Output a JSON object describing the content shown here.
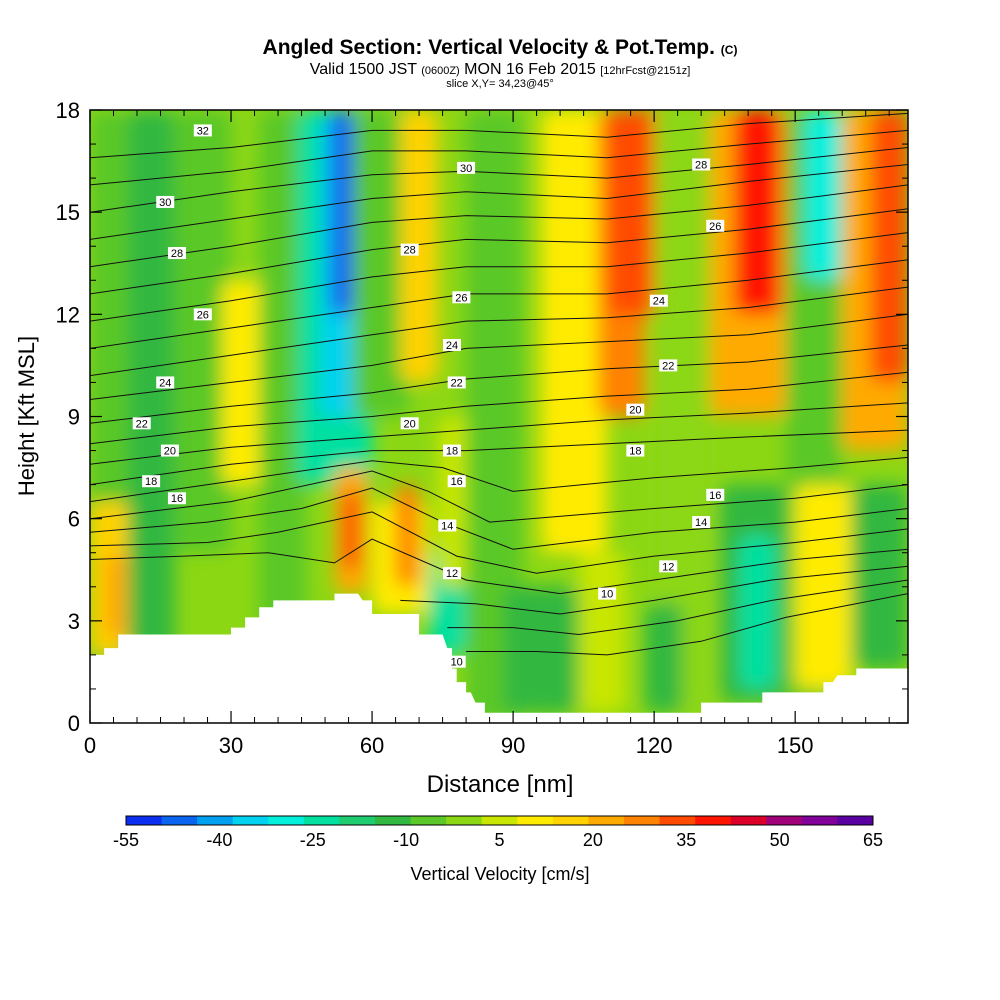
{
  "header": {
    "title": "Angled Section: Vertical Velocity & Pot.Temp.",
    "title_unit": "(C)",
    "valid_prefix": "Valid 1500 JST",
    "valid_utc": "(0600Z)",
    "valid_date": "MON 16 Feb 2015",
    "forecast": "[12hrFcst@2151z]",
    "slice": "slice X,Y= 34,23@45°"
  },
  "chart_data": {
    "type": "heatmap",
    "xlabel": "Distance [nm]",
    "ylabel": "Height [Kft MSL]",
    "xlim": [
      0,
      174
    ],
    "ylim": [
      0,
      18
    ],
    "xticks": [
      0,
      30,
      60,
      90,
      120,
      150
    ],
    "yticks": [
      0,
      3,
      6,
      9,
      12,
      15,
      18
    ],
    "colorbar": {
      "label": "Vertical Velocity [cm/s]",
      "tick_labels": [
        "-55",
        "-40",
        "-25",
        "-10",
        "5",
        "20",
        "35",
        "50",
        "65"
      ],
      "tick_values": [
        -55,
        -40,
        -25,
        -10,
        5,
        20,
        35,
        50,
        65
      ],
      "colors": [
        "#0a2ff0",
        "#0a64f0",
        "#00a0f0",
        "#00d2f0",
        "#00f0dc",
        "#00e0a0",
        "#20cc70",
        "#30b840",
        "#5ac828",
        "#8cd714",
        "#c8e600",
        "#ffeb00",
        "#ffd200",
        "#ffaa00",
        "#ff8200",
        "#ff4b00",
        "#ff1400",
        "#dc0028",
        "#a0007a",
        "#82009a",
        "#5a00a0"
      ]
    },
    "terrain": [
      [
        0,
        2.0
      ],
      [
        3,
        2.0
      ],
      [
        3,
        2.2
      ],
      [
        6,
        2.2
      ],
      [
        6,
        2.6
      ],
      [
        15,
        2.6
      ],
      [
        20,
        2.6
      ],
      [
        25,
        2.6
      ],
      [
        30,
        2.6
      ],
      [
        30,
        2.8
      ],
      [
        33,
        2.8
      ],
      [
        33,
        3.1
      ],
      [
        36,
        3.1
      ],
      [
        36,
        3.4
      ],
      [
        39,
        3.4
      ],
      [
        39,
        3.6
      ],
      [
        45,
        3.6
      ],
      [
        52,
        3.6
      ],
      [
        52,
        3.8
      ],
      [
        57,
        3.8
      ],
      [
        58,
        3.6
      ],
      [
        60,
        3.6
      ],
      [
        60,
        3.2
      ],
      [
        64,
        3.2
      ],
      [
        70,
        3.2
      ],
      [
        70,
        2.6
      ],
      [
        73,
        2.6
      ],
      [
        75,
        2.6
      ],
      [
        76,
        2.2
      ],
      [
        77,
        2.2
      ],
      [
        77,
        1.6
      ],
      [
        78,
        1.6
      ],
      [
        78,
        1.2
      ],
      [
        80,
        1.2
      ],
      [
        80,
        0.9
      ],
      [
        81,
        0.9
      ],
      [
        82,
        0.6
      ],
      [
        84,
        0.6
      ],
      [
        84,
        0.3
      ],
      [
        90,
        0.3
      ],
      [
        97,
        0.3
      ],
      [
        100,
        0.3
      ],
      [
        120,
        0.3
      ],
      [
        130,
        0.3
      ],
      [
        130,
        0.6
      ],
      [
        134,
        0.6
      ],
      [
        138,
        0.6
      ],
      [
        143,
        0.6
      ],
      [
        143,
        0.9
      ],
      [
        150,
        0.9
      ],
      [
        156,
        0.9
      ],
      [
        156,
        1.2
      ],
      [
        158,
        1.2
      ],
      [
        159,
        1.4
      ],
      [
        163,
        1.4
      ],
      [
        163,
        1.6
      ],
      [
        166,
        1.6
      ],
      [
        174,
        1.6
      ]
    ],
    "shading": [
      {
        "x": 0,
        "w": 8,
        "ymin": 0,
        "ymax": 18,
        "v": -5
      },
      {
        "x": 0,
        "w": 12,
        "ymin": 2,
        "ymax": 6.5,
        "v": 18
      },
      {
        "x": 3,
        "w": 5,
        "ymin": 2.5,
        "ymax": 5,
        "v": 22
      },
      {
        "x": 8,
        "w": 10,
        "ymin": 0,
        "ymax": 18,
        "v": -13
      },
      {
        "x": 18,
        "w": 12,
        "ymin": 5,
        "ymax": 18,
        "v": -4
      },
      {
        "x": 28,
        "w": 10,
        "ymin": 7,
        "ymax": 13,
        "v": 9
      },
      {
        "x": 36,
        "w": 10,
        "ymin": 0,
        "ymax": 18,
        "v": -6
      },
      {
        "x": 44,
        "w": 16,
        "ymin": 7,
        "ymax": 18,
        "v": -24
      },
      {
        "x": 49,
        "w": 8,
        "ymin": 9,
        "ymax": 18,
        "v": -37
      },
      {
        "x": 51,
        "w": 5,
        "ymin": 12,
        "ymax": 18,
        "v": -45
      },
      {
        "x": 52,
        "w": 7,
        "ymin": 3.8,
        "ymax": 7.5,
        "v": 22
      },
      {
        "x": 54,
        "w": 3,
        "ymin": 4.5,
        "ymax": 6.8,
        "v": 38
      },
      {
        "x": 60,
        "w": 12,
        "ymin": 3.2,
        "ymax": 6.5,
        "v": 12
      },
      {
        "x": 65,
        "w": 5,
        "ymin": 4,
        "ymax": 7,
        "v": 28
      },
      {
        "x": 56,
        "w": 12,
        "ymin": 9,
        "ymax": 18,
        "v": -8
      },
      {
        "x": 66,
        "w": 8,
        "ymin": 10,
        "ymax": 18,
        "v": 14
      },
      {
        "x": 72,
        "w": 8,
        "ymin": 2,
        "ymax": 5,
        "v": -22
      },
      {
        "x": 74,
        "w": 10,
        "ymin": 4,
        "ymax": 9,
        "v": 6
      },
      {
        "x": 80,
        "w": 12,
        "ymin": 0,
        "ymax": 18,
        "v": -8
      },
      {
        "x": 88,
        "w": 16,
        "ymin": 0.3,
        "ymax": 4,
        "v": -14
      },
      {
        "x": 96,
        "w": 14,
        "ymin": 5,
        "ymax": 18,
        "v": 8
      },
      {
        "x": 104,
        "w": 10,
        "ymin": 0.3,
        "ymax": 5,
        "v": 6
      },
      {
        "x": 108,
        "w": 10,
        "ymin": 9,
        "ymax": 18,
        "v": 26
      },
      {
        "x": 110,
        "w": 12,
        "ymin": 12,
        "ymax": 18,
        "v": 32
      },
      {
        "x": 120,
        "w": 12,
        "ymin": 0.3,
        "ymax": 18,
        "v": -2
      },
      {
        "x": 118,
        "w": 8,
        "ymin": 0.3,
        "ymax": 3.5,
        "v": -14
      },
      {
        "x": 132,
        "w": 16,
        "ymin": 9,
        "ymax": 18,
        "v": 24
      },
      {
        "x": 137,
        "w": 10,
        "ymin": 12,
        "ymax": 18,
        "v": 38
      },
      {
        "x": 134,
        "w": 14,
        "ymin": 0.6,
        "ymax": 7,
        "v": -14
      },
      {
        "x": 138,
        "w": 8,
        "ymin": 1,
        "ymax": 5.5,
        "v": -24
      },
      {
        "x": 148,
        "w": 12,
        "ymin": 0,
        "ymax": 18,
        "v": -4
      },
      {
        "x": 152,
        "w": 8,
        "ymin": 13,
        "ymax": 18,
        "v": -32
      },
      {
        "x": 150,
        "w": 12,
        "ymin": 1,
        "ymax": 7,
        "v": 9
      },
      {
        "x": 160,
        "w": 14,
        "ymin": 8,
        "ymax": 18,
        "v": 20
      },
      {
        "x": 166,
        "w": 8,
        "ymin": 10,
        "ymax": 18,
        "v": 34
      },
      {
        "x": 162,
        "w": 12,
        "ymin": 1.6,
        "ymax": 7,
        "v": -12
      }
    ],
    "theta_lines": [
      [
        [
          0,
          16.6
        ],
        [
          30,
          16.9
        ],
        [
          60,
          17.4
        ],
        [
          80,
          17.4
        ],
        [
          110,
          17.2
        ],
        [
          140,
          17.6
        ],
        [
          174,
          17.9
        ]
      ],
      [
        [
          0,
          15.8
        ],
        [
          30,
          16.2
        ],
        [
          60,
          16.8
        ],
        [
          80,
          16.8
        ],
        [
          110,
          16.6
        ],
        [
          140,
          17.0
        ],
        [
          174,
          17.4
        ]
      ],
      [
        [
          0,
          15.0
        ],
        [
          30,
          15.6
        ],
        [
          60,
          16.1
        ],
        [
          80,
          16.2
        ],
        [
          110,
          16.0
        ],
        [
          140,
          16.4
        ],
        [
          174,
          16.9
        ]
      ],
      [
        [
          0,
          14.2
        ],
        [
          30,
          14.8
        ],
        [
          60,
          15.4
        ],
        [
          80,
          15.6
        ],
        [
          110,
          15.4
        ],
        [
          140,
          15.9
        ],
        [
          174,
          16.4
        ]
      ],
      [
        [
          0,
          13.4
        ],
        [
          30,
          14.0
        ],
        [
          60,
          14.7
        ],
        [
          80,
          14.9
        ],
        [
          110,
          14.8
        ],
        [
          140,
          15.2
        ],
        [
          174,
          15.8
        ]
      ],
      [
        [
          0,
          12.6
        ],
        [
          30,
          13.2
        ],
        [
          60,
          13.9
        ],
        [
          80,
          14.2
        ],
        [
          110,
          14.1
        ],
        [
          140,
          14.5
        ],
        [
          174,
          15.1
        ]
      ],
      [
        [
          0,
          11.8
        ],
        [
          30,
          12.4
        ],
        [
          60,
          13.1
        ],
        [
          80,
          13.4
        ],
        [
          110,
          13.4
        ],
        [
          140,
          13.8
        ],
        [
          174,
          14.4
        ]
      ],
      [
        [
          0,
          11.0
        ],
        [
          30,
          11.6
        ],
        [
          60,
          12.2
        ],
        [
          80,
          12.6
        ],
        [
          110,
          12.6
        ],
        [
          140,
          13.0
        ],
        [
          174,
          13.6
        ]
      ],
      [
        [
          0,
          10.2
        ],
        [
          30,
          10.8
        ],
        [
          60,
          11.4
        ],
        [
          80,
          11.8
        ],
        [
          110,
          11.9
        ],
        [
          140,
          12.2
        ],
        [
          174,
          12.8
        ]
      ],
      [
        [
          0,
          9.5
        ],
        [
          30,
          10.0
        ],
        [
          60,
          10.5
        ],
        [
          80,
          11.0
        ],
        [
          110,
          11.2
        ],
        [
          140,
          11.4
        ],
        [
          174,
          12.0
        ]
      ],
      [
        [
          0,
          8.8
        ],
        [
          30,
          9.3
        ],
        [
          60,
          9.7
        ],
        [
          80,
          10.1
        ],
        [
          110,
          10.4
        ],
        [
          140,
          10.6
        ],
        [
          174,
          11.1
        ]
      ],
      [
        [
          0,
          8.2
        ],
        [
          30,
          8.7
        ],
        [
          60,
          9.0
        ],
        [
          80,
          9.3
        ],
        [
          110,
          9.6
        ],
        [
          140,
          9.8
        ],
        [
          174,
          10.3
        ]
      ],
      [
        [
          0,
          7.6
        ],
        [
          30,
          8.1
        ],
        [
          60,
          8.4
        ],
        [
          80,
          8.6
        ],
        [
          110,
          8.9
        ],
        [
          140,
          9.1
        ],
        [
          174,
          9.4
        ]
      ],
      [
        [
          0,
          7.0
        ],
        [
          30,
          7.6
        ],
        [
          60,
          8.0
        ],
        [
          80,
          8.0
        ],
        [
          110,
          8.2
        ],
        [
          140,
          8.4
        ],
        [
          174,
          8.6
        ]
      ],
      [
        [
          0,
          6.5
        ],
        [
          30,
          7.1
        ],
        [
          60,
          7.7
        ],
        [
          75,
          7.5
        ],
        [
          90,
          6.8
        ],
        [
          120,
          7.2
        ],
        [
          150,
          7.5
        ],
        [
          174,
          7.8
        ]
      ],
      [
        [
          0,
          6.0
        ],
        [
          30,
          6.5
        ],
        [
          60,
          7.4
        ],
        [
          72,
          6.8
        ],
        [
          85,
          5.9
        ],
        [
          120,
          6.3
        ],
        [
          150,
          6.6
        ],
        [
          174,
          7.0
        ]
      ],
      [
        [
          0,
          5.6
        ],
        [
          25,
          5.9
        ],
        [
          45,
          6.3
        ],
        [
          60,
          6.9
        ],
        [
          75,
          5.9
        ],
        [
          90,
          5.1
        ],
        [
          120,
          5.6
        ],
        [
          150,
          5.9
        ],
        [
          174,
          6.3
        ]
      ],
      [
        [
          0,
          5.2
        ],
        [
          25,
          5.3
        ],
        [
          40,
          5.6
        ],
        [
          60,
          6.2
        ],
        [
          78,
          4.9
        ],
        [
          95,
          4.4
        ],
        [
          120,
          4.9
        ],
        [
          150,
          5.3
        ],
        [
          174,
          5.7
        ]
      ],
      [
        [
          0,
          4.8
        ],
        [
          20,
          4.9
        ],
        [
          38,
          5.0
        ],
        [
          52,
          4.7
        ],
        [
          60,
          5.4
        ],
        [
          80,
          4.2
        ],
        [
          100,
          3.8
        ],
        [
          125,
          4.3
        ],
        [
          150,
          4.8
        ],
        [
          174,
          5.1
        ]
      ],
      [
        [
          66,
          3.6
        ],
        [
          82,
          3.5
        ],
        [
          100,
          3.2
        ],
        [
          120,
          3.6
        ],
        [
          145,
          4.2
        ],
        [
          174,
          4.6
        ]
      ],
      [
        [
          76,
          2.8
        ],
        [
          90,
          2.8
        ],
        [
          104,
          2.6
        ],
        [
          125,
          3.0
        ],
        [
          145,
          3.6
        ],
        [
          174,
          4.2
        ]
      ],
      [
        [
          80,
          2.1
        ],
        [
          95,
          2.1
        ],
        [
          110,
          2.0
        ],
        [
          130,
          2.4
        ],
        [
          148,
          3.1
        ],
        [
          174,
          3.8
        ]
      ]
    ],
    "theta_labels": [
      {
        "text": "32",
        "x": 24,
        "y": 17.4
      },
      {
        "text": "30",
        "x": 16,
        "y": 15.3
      },
      {
        "text": "28",
        "x": 18.5,
        "y": 13.8
      },
      {
        "text": "26",
        "x": 24,
        "y": 12.0
      },
      {
        "text": "24",
        "x": 16,
        "y": 10.0
      },
      {
        "text": "22",
        "x": 11,
        "y": 8.8
      },
      {
        "text": "20",
        "x": 17,
        "y": 8.0
      },
      {
        "text": "18",
        "x": 13,
        "y": 7.1
      },
      {
        "text": "16",
        "x": 18.5,
        "y": 6.6
      },
      {
        "text": "30",
        "x": 80,
        "y": 16.3
      },
      {
        "text": "28",
        "x": 68,
        "y": 13.9
      },
      {
        "text": "26",
        "x": 79,
        "y": 12.5
      },
      {
        "text": "24",
        "x": 77,
        "y": 11.1
      },
      {
        "text": "22",
        "x": 78,
        "y": 10.0
      },
      {
        "text": "20",
        "x": 68,
        "y": 8.8
      },
      {
        "text": "18",
        "x": 77,
        "y": 8.0
      },
      {
        "text": "16",
        "x": 78,
        "y": 7.1
      },
      {
        "text": "14",
        "x": 76,
        "y": 5.8
      },
      {
        "text": "12",
        "x": 77,
        "y": 4.4
      },
      {
        "text": "10",
        "x": 78,
        "y": 1.8
      },
      {
        "text": "28",
        "x": 130,
        "y": 16.4
      },
      {
        "text": "26",
        "x": 133,
        "y": 14.6
      },
      {
        "text": "24",
        "x": 121,
        "y": 12.4
      },
      {
        "text": "22",
        "x": 123,
        "y": 10.5
      },
      {
        "text": "20",
        "x": 116,
        "y": 9.2
      },
      {
        "text": "18",
        "x": 116,
        "y": 8.0
      },
      {
        "text": "16",
        "x": 133,
        "y": 6.7
      },
      {
        "text": "14",
        "x": 130,
        "y": 5.9
      },
      {
        "text": "12",
        "x": 123,
        "y": 4.6
      },
      {
        "text": "10",
        "x": 110,
        "y": 3.8
      }
    ]
  }
}
